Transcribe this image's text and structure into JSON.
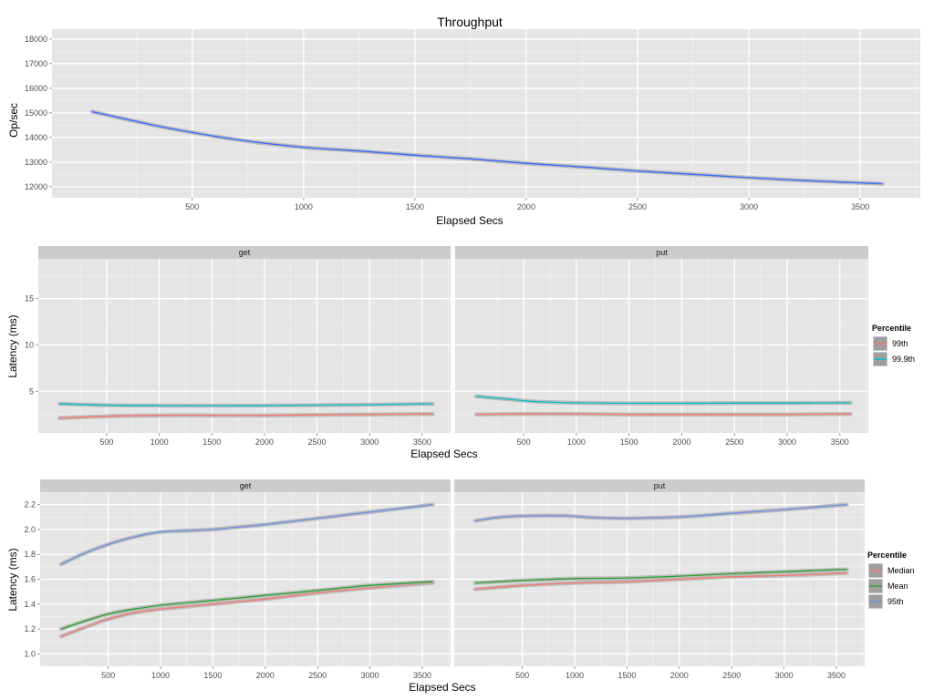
{
  "chart_data": [
    {
      "type": "line",
      "title": "Throughput",
      "xlabel": "Elapsed Secs",
      "ylabel": "Op/sec",
      "xlim": [
        -130,
        3770
      ],
      "ylim": [
        11550,
        18400
      ],
      "x_ticks": [
        500,
        1000,
        1500,
        2000,
        2500,
        3000,
        3500
      ],
      "y_ticks": [
        12000,
        13000,
        14000,
        15000,
        16000,
        17000,
        18000
      ],
      "grid": true,
      "series": [
        {
          "color": "#3366ff",
          "band_color": "#999999",
          "points": [
            [
              50,
              15050
            ],
            [
              300,
              14550
            ],
            [
              500,
              14200
            ],
            [
              750,
              13850
            ],
            [
              1000,
              13600
            ],
            [
              1250,
              13450
            ],
            [
              1500,
              13280
            ],
            [
              1750,
              13130
            ],
            [
              2000,
              12950
            ],
            [
              2250,
              12800
            ],
            [
              2500,
              12640
            ],
            [
              2750,
              12500
            ],
            [
              3000,
              12370
            ],
            [
              3250,
              12250
            ],
            [
              3600,
              12120
            ]
          ]
        }
      ]
    },
    {
      "type": "line",
      "facets": [
        "get",
        "put"
      ],
      "xlabel": "Elapsed Secs",
      "ylabel": "Latency (ms)",
      "xlim": [
        -150,
        3770
      ],
      "ylim": [
        0.5,
        19.3
      ],
      "x_ticks": [
        500,
        1000,
        1500,
        2000,
        2500,
        3000,
        3500
      ],
      "y_ticks": [
        5,
        10,
        15
      ],
      "y_tick_labels": [
        "5",
        "10",
        "15"
      ],
      "grid": true,
      "legend": {
        "title": "Percentile",
        "position": "right"
      },
      "series": [
        {
          "name": "99th",
          "color": "#f8766d",
          "points": {
            "get": [
              [
                50,
                2.1
              ],
              [
                500,
                2.3
              ],
              [
                1000,
                2.4
              ],
              [
                1500,
                2.4
              ],
              [
                2000,
                2.4
              ],
              [
                2500,
                2.45
              ],
              [
                3000,
                2.5
              ],
              [
                3600,
                2.55
              ]
            ],
            "put": [
              [
                50,
                2.5
              ],
              [
                500,
                2.55
              ],
              [
                1000,
                2.55
              ],
              [
                1500,
                2.5
              ],
              [
                2000,
                2.5
              ],
              [
                2500,
                2.5
              ],
              [
                3000,
                2.5
              ],
              [
                3600,
                2.55
              ]
            ]
          }
        },
        {
          "name": "99.9th",
          "color": "#00bfc4",
          "points": {
            "get": [
              [
                50,
                3.65
              ],
              [
                500,
                3.5
              ],
              [
                1000,
                3.45
              ],
              [
                1500,
                3.45
              ],
              [
                2000,
                3.45
              ],
              [
                2500,
                3.5
              ],
              [
                3000,
                3.55
              ],
              [
                3600,
                3.65
              ]
            ],
            "put": [
              [
                50,
                4.45
              ],
              [
                300,
                4.2
              ],
              [
                600,
                3.9
              ],
              [
                1000,
                3.75
              ],
              [
                1500,
                3.7
              ],
              [
                2000,
                3.7
              ],
              [
                2500,
                3.72
              ],
              [
                3000,
                3.72
              ],
              [
                3600,
                3.75
              ]
            ]
          }
        }
      ]
    },
    {
      "type": "line",
      "facets": [
        "get",
        "put"
      ],
      "xlabel": "Elapsed Secs",
      "ylabel": "Latency (ms)",
      "xlim": [
        -150,
        3770
      ],
      "ylim": [
        0.9,
        2.3
      ],
      "x_ticks": [
        500,
        1000,
        1500,
        2000,
        2500,
        3000,
        3500
      ],
      "y_ticks": [
        1.0,
        1.2,
        1.4,
        1.6,
        1.8,
        2.0,
        2.2
      ],
      "y_tick_labels": [
        "1.0",
        "1.2",
        "1.4",
        "1.6",
        "1.8",
        "2.0",
        "2.2"
      ],
      "grid": true,
      "legend": {
        "title": "Percentile",
        "position": "right"
      },
      "series": [
        {
          "name": "Median",
          "color": "#f8766d",
          "points": {
            "get": [
              [
                50,
                1.14
              ],
              [
                300,
                1.22
              ],
              [
                500,
                1.28
              ],
              [
                750,
                1.33
              ],
              [
                1000,
                1.36
              ],
              [
                1250,
                1.38
              ],
              [
                1500,
                1.4
              ],
              [
                1750,
                1.42
              ],
              [
                2000,
                1.44
              ],
              [
                2500,
                1.49
              ],
              [
                3000,
                1.53
              ],
              [
                3600,
                1.57
              ]
            ],
            "put": [
              [
                50,
                1.52
              ],
              [
                500,
                1.55
              ],
              [
                1000,
                1.57
              ],
              [
                1500,
                1.58
              ],
              [
                2000,
                1.6
              ],
              [
                2500,
                1.62
              ],
              [
                3000,
                1.63
              ],
              [
                3600,
                1.65
              ]
            ]
          }
        },
        {
          "name": "Mean",
          "color": "#2ca02c",
          "points": {
            "get": [
              [
                50,
                1.2
              ],
              [
                300,
                1.27
              ],
              [
                500,
                1.32
              ],
              [
                750,
                1.36
              ],
              [
                1000,
                1.39
              ],
              [
                1250,
                1.41
              ],
              [
                1500,
                1.43
              ],
              [
                1750,
                1.45
              ],
              [
                2000,
                1.47
              ],
              [
                2500,
                1.51
              ],
              [
                3000,
                1.55
              ],
              [
                3600,
                1.58
              ]
            ],
            "put": [
              [
                50,
                1.57
              ],
              [
                500,
                1.59
              ],
              [
                1000,
                1.605
              ],
              [
                1500,
                1.61
              ],
              [
                2000,
                1.625
              ],
              [
                2500,
                1.645
              ],
              [
                3000,
                1.66
              ],
              [
                3600,
                1.68
              ]
            ]
          }
        },
        {
          "name": "95th",
          "color": "#6a8fe0",
          "points": {
            "get": [
              [
                50,
                1.72
              ],
              [
                250,
                1.8
              ],
              [
                500,
                1.88
              ],
              [
                750,
                1.94
              ],
              [
                1000,
                1.98
              ],
              [
                1250,
                1.99
              ],
              [
                1500,
                2.0
              ],
              [
                1750,
                2.02
              ],
              [
                2000,
                2.04
              ],
              [
                2500,
                2.09
              ],
              [
                3000,
                2.14
              ],
              [
                3600,
                2.2
              ]
            ],
            "put": [
              [
                50,
                2.07
              ],
              [
                300,
                2.1
              ],
              [
                600,
                2.11
              ],
              [
                900,
                2.11
              ],
              [
                1200,
                2.095
              ],
              [
                1500,
                2.09
              ],
              [
                1800,
                2.095
              ],
              [
                2100,
                2.105
              ],
              [
                2500,
                2.13
              ],
              [
                3000,
                2.16
              ],
              [
                3600,
                2.2
              ]
            ]
          }
        }
      ]
    }
  ]
}
